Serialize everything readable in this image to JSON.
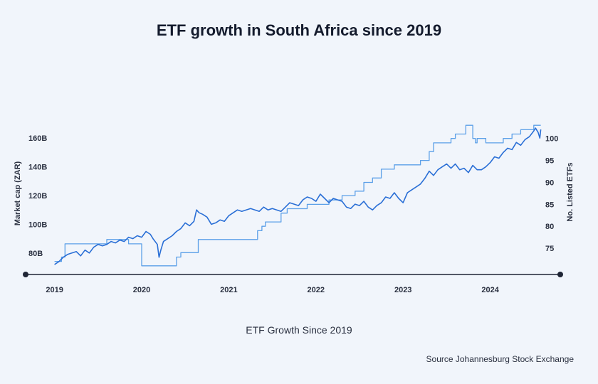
{
  "chart_data": {
    "type": "line",
    "title": "ETF growth in South Africa since 2019",
    "caption": "ETF Growth Since 2019",
    "source": "Source Johannesburg Stock Exchange",
    "ylabel": "Market cap (ZAR)",
    "y2label": "No. Listed ETFs",
    "x_ticks": [
      "2019",
      "2020",
      "2021",
      "2022",
      "2023",
      "2024"
    ],
    "y_ticks": [
      "80B",
      "100B",
      "120B",
      "140B",
      "160B"
    ],
    "y2_ticks": [
      "75",
      "80",
      "85",
      "90",
      "95",
      "100"
    ],
    "ylim": [
      68,
      172
    ],
    "y2lim": [
      70,
      104
    ],
    "xlim": [
      2018.93,
      2024.6
    ],
    "grid": false,
    "colors": {
      "market_cap": "#2a6fd6",
      "listed_etfs": "#5ca0e8",
      "axis": "#1f2535"
    },
    "series": [
      {
        "name": "Market cap (ZAR)",
        "axis": "left",
        "x": [
          2019.0,
          2019.05,
          2019.1,
          2019.15,
          2019.2,
          2019.25,
          2019.3,
          2019.35,
          2019.4,
          2019.45,
          2019.5,
          2019.55,
          2019.6,
          2019.65,
          2019.7,
          2019.75,
          2019.8,
          2019.85,
          2019.9,
          2019.95,
          2020.0,
          2020.05,
          2020.1,
          2020.13,
          2020.18,
          2020.2,
          2020.22,
          2020.25,
          2020.3,
          2020.35,
          2020.4,
          2020.45,
          2020.5,
          2020.55,
          2020.6,
          2020.63,
          2020.66,
          2020.7,
          2020.75,
          2020.8,
          2020.85,
          2020.9,
          2020.95,
          2021.0,
          2021.05,
          2021.1,
          2021.15,
          2021.2,
          2021.25,
          2021.3,
          2021.35,
          2021.4,
          2021.45,
          2021.5,
          2021.55,
          2021.6,
          2021.65,
          2021.7,
          2021.75,
          2021.8,
          2021.85,
          2021.9,
          2021.95,
          2022.0,
          2022.05,
          2022.1,
          2022.15,
          2022.2,
          2022.25,
          2022.3,
          2022.35,
          2022.4,
          2022.45,
          2022.5,
          2022.55,
          2022.6,
          2022.65,
          2022.7,
          2022.75,
          2022.8,
          2022.85,
          2022.9,
          2022.95,
          2023.0,
          2023.05,
          2023.1,
          2023.15,
          2023.2,
          2023.25,
          2023.3,
          2023.35,
          2023.4,
          2023.45,
          2023.5,
          2023.55,
          2023.6,
          2023.65,
          2023.7,
          2023.75,
          2023.8,
          2023.85,
          2023.9,
          2023.95,
          2024.0,
          2024.05,
          2024.1,
          2024.15,
          2024.2,
          2024.25,
          2024.3,
          2024.35,
          2024.4,
          2024.45,
          2024.5,
          2024.52,
          2024.55,
          2024.57,
          2024.58
        ],
        "values": [
          72,
          74,
          77,
          79,
          80,
          81,
          78,
          82,
          80,
          84,
          86,
          85,
          86,
          88,
          87,
          89,
          88,
          91,
          90,
          92,
          91,
          95,
          93,
          90,
          86,
          77,
          82,
          88,
          90,
          92,
          95,
          97,
          101,
          99,
          102,
          110,
          108,
          107,
          105,
          100,
          101,
          103,
          102,
          106,
          108,
          110,
          109,
          110,
          111,
          110,
          109,
          112,
          110,
          111,
          110,
          109,
          112,
          115,
          114,
          113,
          117,
          119,
          118,
          116,
          121,
          118,
          115,
          118,
          117,
          116,
          112,
          111,
          114,
          113,
          116,
          112,
          110,
          113,
          115,
          119,
          118,
          122,
          118,
          115,
          122,
          124,
          126,
          128,
          132,
          137,
          134,
          138,
          140,
          142,
          139,
          142,
          138,
          139,
          136,
          141,
          138,
          138,
          140,
          143,
          147,
          146,
          150,
          153,
          152,
          157,
          155,
          159,
          161,
          165,
          167,
          164,
          160,
          166
        ]
      },
      {
        "name": "No. Listed ETFs",
        "axis": "right",
        "step": true,
        "x": [
          2019.0,
          2019.08,
          2019.12,
          2019.2,
          2019.45,
          2019.6,
          2019.8,
          2019.85,
          2019.97,
          2020.0,
          2020.3,
          2020.4,
          2020.45,
          2020.55,
          2020.65,
          2021.28,
          2021.33,
          2021.38,
          2021.42,
          2021.5,
          2021.6,
          2021.67,
          2021.7,
          2021.8,
          2021.9,
          2022.0,
          2022.15,
          2022.3,
          2022.45,
          2022.55,
          2022.65,
          2022.75,
          2022.9,
          2023.0,
          2023.2,
          2023.3,
          2023.35,
          2023.4,
          2023.55,
          2023.6,
          2023.7,
          2023.72,
          2023.8,
          2023.83,
          2023.85,
          2023.88,
          2023.95,
          2024.02,
          2024.15,
          2024.25,
          2024.35,
          2024.45,
          2024.5,
          2024.55,
          2024.58
        ],
        "values": [
          72,
          73,
          76,
          76,
          76,
          77,
          77,
          76,
          76,
          71,
          71,
          73,
          74,
          74,
          77,
          77,
          79,
          80,
          81,
          81,
          83,
          84,
          84,
          84,
          85,
          85,
          86,
          87,
          88,
          90,
          91,
          93,
          94,
          94,
          95,
          97,
          99,
          99,
          100,
          101,
          101,
          103,
          100,
          99,
          100,
          100,
          99,
          99,
          100,
          101,
          102,
          102,
          103,
          103,
          103
        ]
      }
    ]
  }
}
